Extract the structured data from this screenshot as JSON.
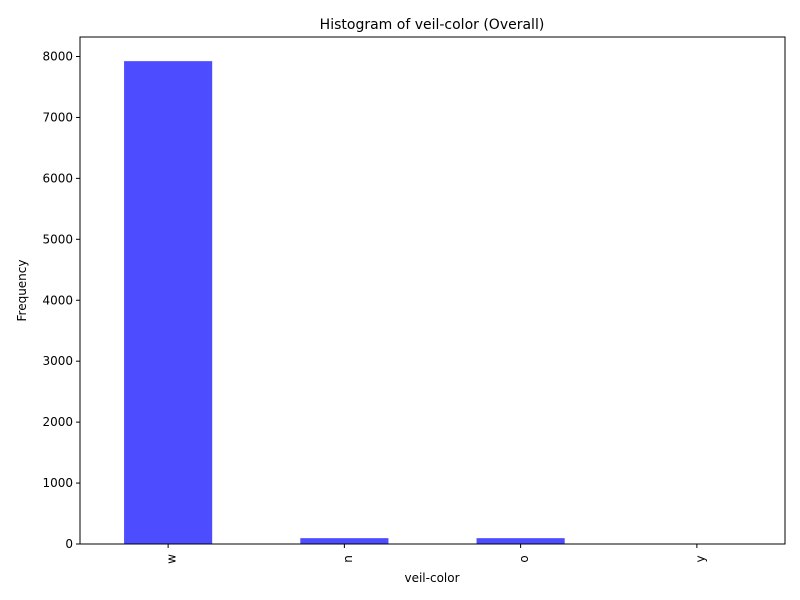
{
  "chart_data": {
    "type": "bar",
    "title": "Histogram of veil-color (Overall)",
    "xlabel": "veil-color",
    "ylabel": "Frequency",
    "categories": [
      "w",
      "n",
      "o",
      "y"
    ],
    "values": [
      7924,
      96,
      96,
      8
    ],
    "ylim": [
      0,
      8320
    ],
    "yticks": [
      0,
      1000,
      2000,
      3000,
      4000,
      5000,
      6000,
      7000,
      8000
    ],
    "grid": false,
    "legend": "none",
    "bar_color": "#4d4dff"
  }
}
